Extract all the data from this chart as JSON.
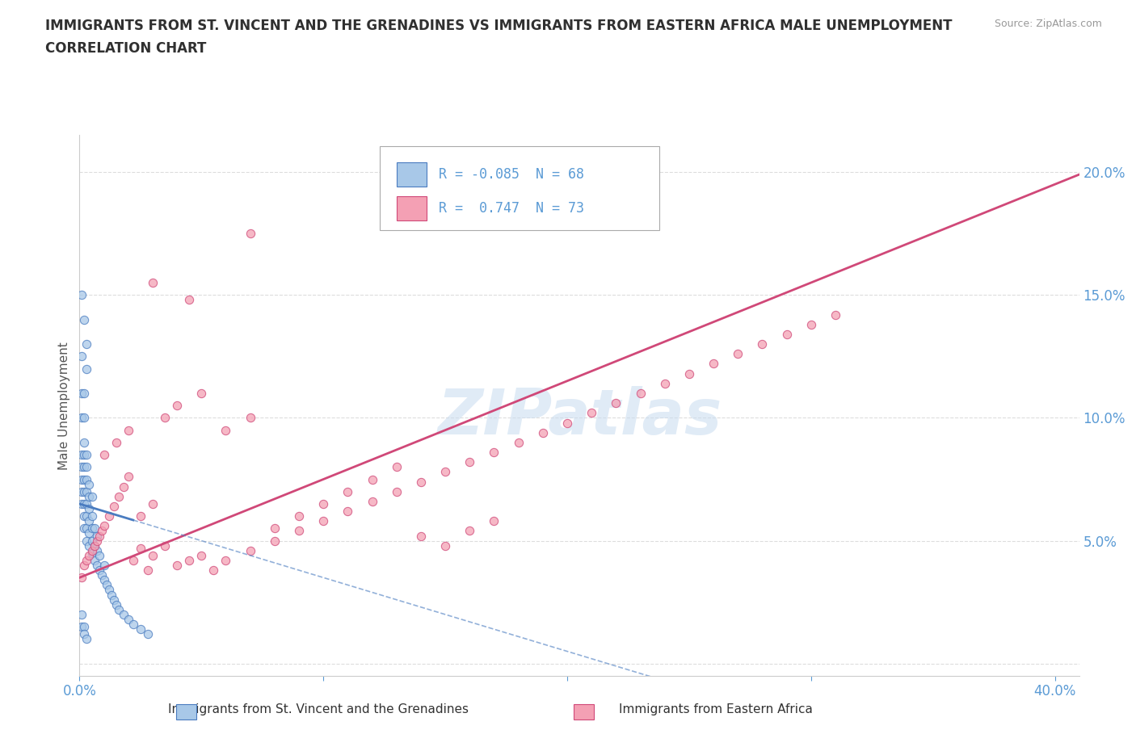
{
  "title_line1": "IMMIGRANTS FROM ST. VINCENT AND THE GRENADINES VS IMMIGRANTS FROM EASTERN AFRICA MALE UNEMPLOYMENT",
  "title_line2": "CORRELATION CHART",
  "source": "Source: ZipAtlas.com",
  "ylabel": "Male Unemployment",
  "legend_label1": "Immigrants from St. Vincent and the Grenadines",
  "legend_label2": "Immigrants from Eastern Africa",
  "R1": -0.085,
  "N1": 68,
  "R2": 0.747,
  "N2": 73,
  "color_blue": "#A8C8E8",
  "color_pink": "#F4A0B4",
  "color_blue_line": "#4A7CC0",
  "color_pink_line": "#D04878",
  "watermark": "ZIPatlas",
  "watermark_color": "#C8DCF0",
  "title_color": "#303030",
  "axis_color": "#5B9BD5",
  "grid_color": "#DDDDDD",
  "blue_x": [
    0.001,
    0.001,
    0.001,
    0.001,
    0.001,
    0.002,
    0.002,
    0.002,
    0.002,
    0.002,
    0.002,
    0.002,
    0.002,
    0.003,
    0.003,
    0.003,
    0.003,
    0.003,
    0.003,
    0.003,
    0.003,
    0.004,
    0.004,
    0.004,
    0.004,
    0.004,
    0.004,
    0.005,
    0.005,
    0.005,
    0.005,
    0.005,
    0.006,
    0.006,
    0.006,
    0.007,
    0.007,
    0.007,
    0.008,
    0.008,
    0.009,
    0.01,
    0.01,
    0.011,
    0.012,
    0.013,
    0.014,
    0.015,
    0.016,
    0.018,
    0.02,
    0.022,
    0.025,
    0.028,
    0.001,
    0.001,
    0.002,
    0.002,
    0.003,
    0.003,
    0.001,
    0.002,
    0.001,
    0.001,
    0.001,
    0.002,
    0.002,
    0.003
  ],
  "blue_y": [
    0.065,
    0.07,
    0.075,
    0.08,
    0.085,
    0.055,
    0.06,
    0.065,
    0.07,
    0.075,
    0.08,
    0.085,
    0.09,
    0.05,
    0.055,
    0.06,
    0.065,
    0.07,
    0.075,
    0.08,
    0.085,
    0.048,
    0.053,
    0.058,
    0.063,
    0.068,
    0.073,
    0.045,
    0.05,
    0.055,
    0.06,
    0.068,
    0.042,
    0.048,
    0.055,
    0.04,
    0.046,
    0.052,
    0.038,
    0.044,
    0.036,
    0.034,
    0.04,
    0.032,
    0.03,
    0.028,
    0.026,
    0.024,
    0.022,
    0.02,
    0.018,
    0.016,
    0.014,
    0.012,
    0.1,
    0.11,
    0.1,
    0.11,
    0.12,
    0.13,
    0.125,
    0.14,
    0.15,
    0.02,
    0.015,
    0.015,
    0.012,
    0.01
  ],
  "pink_x": [
    0.001,
    0.002,
    0.003,
    0.004,
    0.005,
    0.006,
    0.007,
    0.008,
    0.009,
    0.01,
    0.012,
    0.014,
    0.016,
    0.018,
    0.02,
    0.022,
    0.025,
    0.028,
    0.03,
    0.035,
    0.04,
    0.045,
    0.05,
    0.055,
    0.06,
    0.07,
    0.08,
    0.09,
    0.1,
    0.11,
    0.12,
    0.13,
    0.14,
    0.15,
    0.16,
    0.17,
    0.18,
    0.19,
    0.2,
    0.21,
    0.22,
    0.23,
    0.24,
    0.25,
    0.26,
    0.27,
    0.28,
    0.29,
    0.3,
    0.31,
    0.01,
    0.015,
    0.02,
    0.025,
    0.03,
    0.035,
    0.04,
    0.05,
    0.06,
    0.07,
    0.08,
    0.09,
    0.1,
    0.11,
    0.12,
    0.13,
    0.14,
    0.15,
    0.16,
    0.17,
    0.03,
    0.045,
    0.07
  ],
  "pink_y": [
    0.035,
    0.04,
    0.042,
    0.044,
    0.046,
    0.048,
    0.05,
    0.052,
    0.054,
    0.056,
    0.06,
    0.064,
    0.068,
    0.072,
    0.076,
    0.042,
    0.047,
    0.038,
    0.044,
    0.048,
    0.04,
    0.042,
    0.044,
    0.038,
    0.042,
    0.046,
    0.05,
    0.054,
    0.058,
    0.062,
    0.066,
    0.07,
    0.074,
    0.078,
    0.082,
    0.086,
    0.09,
    0.094,
    0.098,
    0.102,
    0.106,
    0.11,
    0.114,
    0.118,
    0.122,
    0.126,
    0.13,
    0.134,
    0.138,
    0.142,
    0.085,
    0.09,
    0.095,
    0.06,
    0.065,
    0.1,
    0.105,
    0.11,
    0.095,
    0.1,
    0.055,
    0.06,
    0.065,
    0.07,
    0.075,
    0.08,
    0.052,
    0.048,
    0.054,
    0.058,
    0.155,
    0.148,
    0.175
  ],
  "xlim": [
    0.0,
    0.41
  ],
  "ylim": [
    -0.005,
    0.215
  ],
  "ytick_vals": [
    0.0,
    0.05,
    0.1,
    0.15,
    0.2
  ],
  "ytick_labels": [
    "",
    "5.0%",
    "10.0%",
    "15.0%",
    "20.0%"
  ],
  "xtick_vals": [
    0.0,
    0.1,
    0.2,
    0.3,
    0.4
  ],
  "xtick_labels": [
    "0.0%",
    "",
    "",
    "",
    "40.0%"
  ]
}
